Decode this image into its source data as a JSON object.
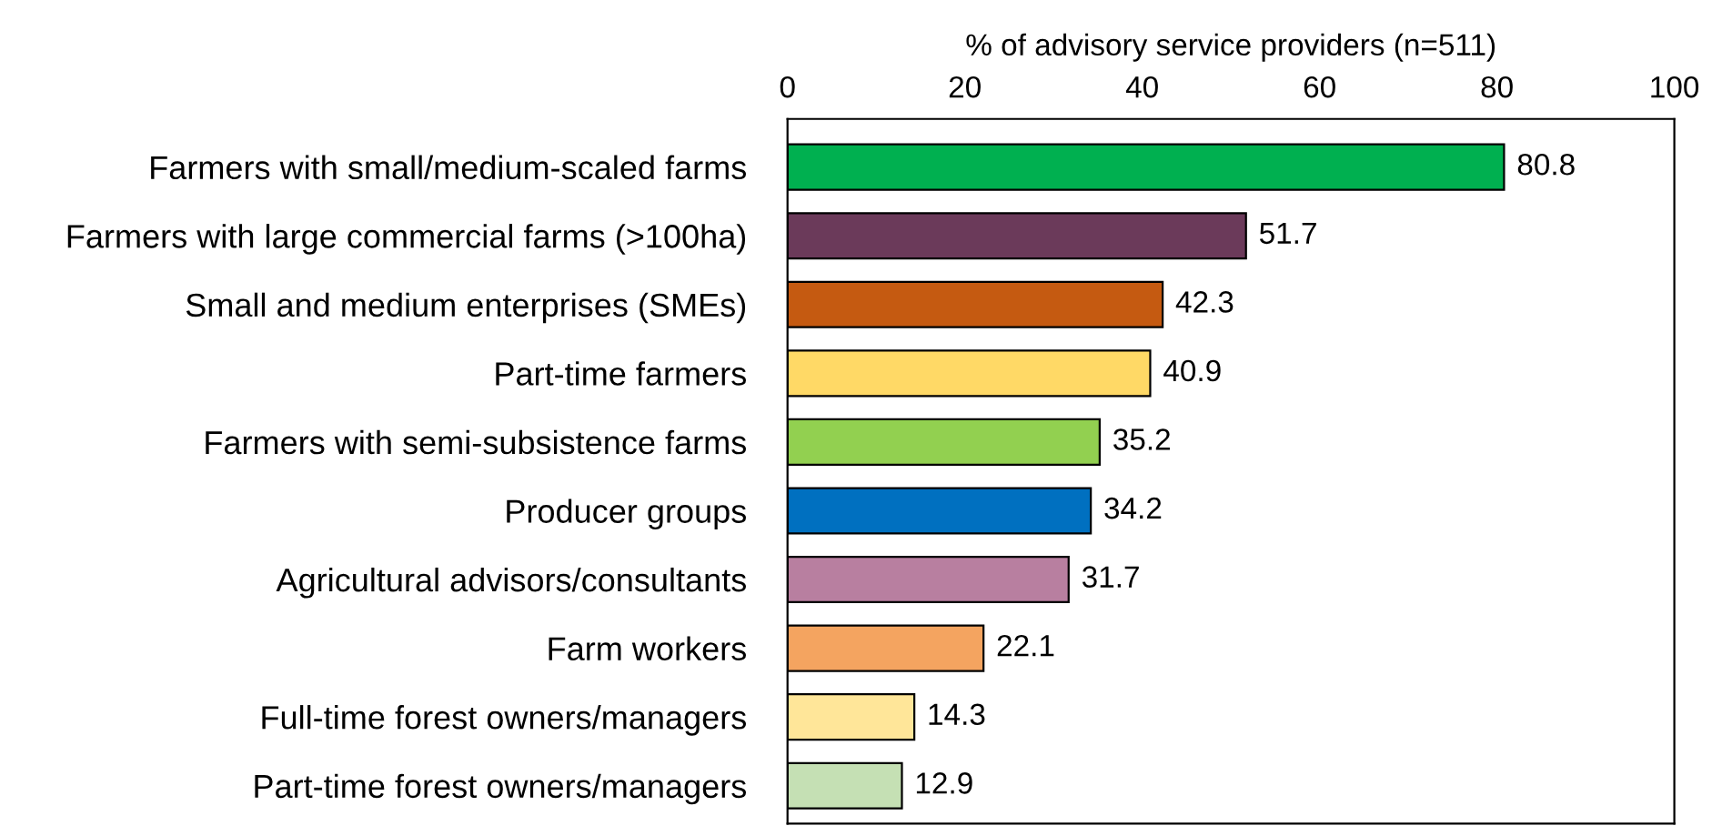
{
  "chart_data": {
    "type": "bar",
    "orientation": "horizontal",
    "xlabel": "% of advisory service providers (n=511)",
    "categories": [
      "Farmers with small/medium-scaled farms",
      "Farmers with large commercial farms (>100ha)",
      "Small and medium enterprises (SMEs)",
      "Part-time farmers",
      "Farmers with semi-subsistence farms",
      "Producer groups",
      "Agricultural advisors/consultants",
      "Farm workers",
      "Full-time forest owners/managers",
      "Part-time forest owners/managers"
    ],
    "values": [
      80.8,
      51.7,
      42.3,
      40.9,
      35.2,
      34.2,
      31.7,
      22.1,
      14.3,
      12.9
    ],
    "colors": [
      "#00b050",
      "#6b3a5a",
      "#c55a11",
      "#ffd966",
      "#92d050",
      "#0070c0",
      "#b87fa0",
      "#f4a460",
      "#ffe699",
      "#c5e0b4"
    ],
    "xlim": [
      0,
      100
    ],
    "xticks": [
      0,
      20,
      40,
      60,
      80,
      100
    ],
    "data_labels": true,
    "grid": false,
    "legend": false
  }
}
